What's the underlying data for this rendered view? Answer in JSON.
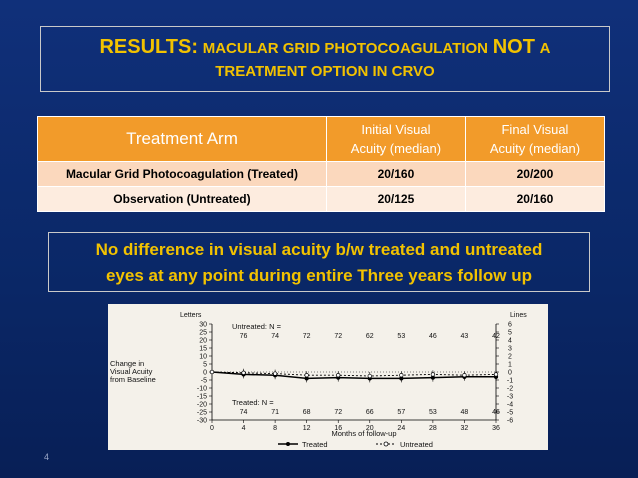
{
  "title": {
    "prefix": "RESULTS:",
    "middle": "MACULAR GRID PHOTOCOAGULATION",
    "emphasis": "NOT",
    "suffix": "A",
    "line2": "TREATMENT OPTION IN CRVO"
  },
  "table": {
    "headers": {
      "arm": "Treatment Arm",
      "initial_line1": "Initial Visual",
      "initial_line2": "Acuity (median)",
      "final_line1": "Final Visual",
      "final_line2": "Acuity (median)"
    },
    "rows": [
      {
        "arm": "Macular Grid Photocoagulation (Treated)",
        "initial": "20/160",
        "final": "20/200"
      },
      {
        "arm": "Observation (Untreated)",
        "initial": "20/125",
        "final": "20/160"
      }
    ]
  },
  "note": {
    "line1": "No difference in visual acuity b/w treated and untreated",
    "line2": "eyes at any point during entire Three years follow up"
  },
  "slide_number": "4",
  "chart_data": {
    "type": "line",
    "ylabel_left_top": "Letters",
    "ylabel_right_top": "Lines",
    "ylabel_line1": "Change in",
    "ylabel_line2": "Visual Acuity",
    "ylabel_line3": "from Baseline",
    "xlabel": "Months of follow-up",
    "x": [
      0,
      4,
      8,
      12,
      16,
      20,
      24,
      28,
      32,
      36
    ],
    "xlim": [
      0,
      36
    ],
    "ylim": [
      -30,
      30
    ],
    "x_ticks": [
      "0",
      "4",
      "8",
      "12",
      "16",
      "20",
      "24",
      "28",
      "32",
      "36"
    ],
    "y_ticks_left": [
      "30",
      "25",
      "20",
      "15",
      "10",
      "5",
      "0",
      "-5",
      "-10",
      "-15",
      "-20",
      "-25",
      "-30"
    ],
    "y_ticks_right": [
      "6",
      "5",
      "4",
      "3",
      "2",
      "1",
      "0",
      "-1",
      "-2",
      "-3",
      "-4",
      "-5",
      "-6"
    ],
    "untreated_n_label": "Untreated: N =",
    "untreated_n": [
      "76",
      "74",
      "72",
      "72",
      "62",
      "53",
      "46",
      "43",
      "42"
    ],
    "treated_n_label": "Treated: N =",
    "treated_n": [
      "74",
      "71",
      "68",
      "72",
      "66",
      "57",
      "53",
      "48",
      "46"
    ],
    "series": [
      {
        "name": "Treated",
        "values": [
          0,
          -1.5,
          -2,
          -4,
          -3.5,
          -4,
          -4,
          -3.5,
          -3,
          -3
        ]
      },
      {
        "name": "Untreated",
        "values": [
          0,
          -0.5,
          -1,
          -2,
          -2,
          -2.5,
          -2,
          -1.5,
          -2,
          -1.5
        ]
      }
    ],
    "legend": "bottom"
  }
}
